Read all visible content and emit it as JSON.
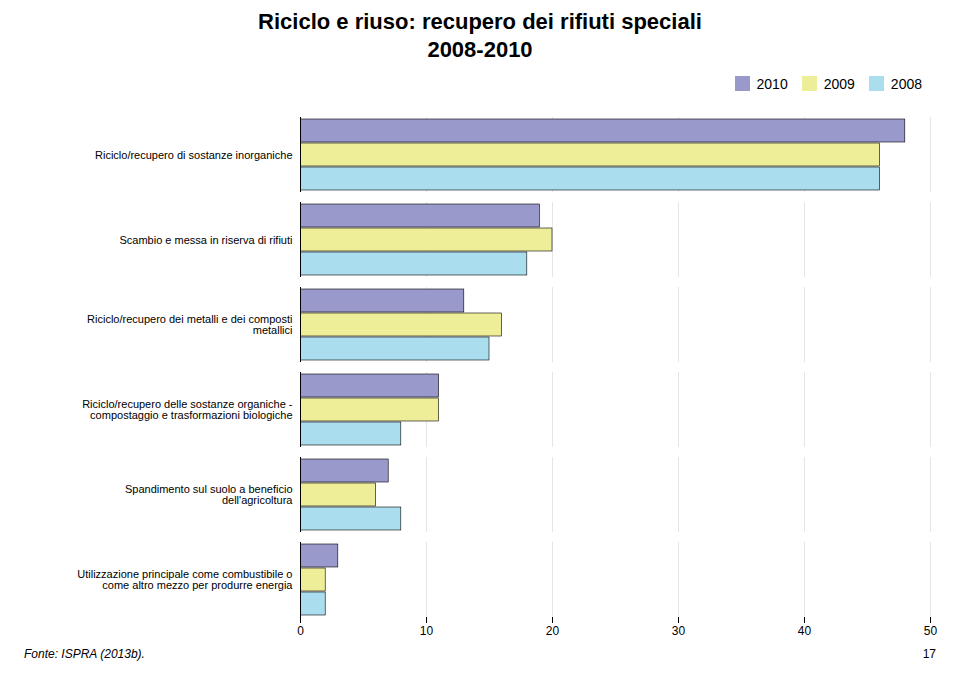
{
  "chart_data": {
    "type": "bar",
    "orientation": "horizontal",
    "title": "Riciclo e riuso: recupero dei rifiuti speciali",
    "subtitle": "2008-2010",
    "categories": [
      "Utilizzazione principale come combustibile o\ncome altro mezzo per produrre energia",
      "Spandimento sul suolo a beneficio\ndell'agricoltura",
      "Riciclo/recupero delle sostanze organiche -\ncompostaggio e trasformazioni biologiche",
      "Riciclo/recupero dei metalli e dei composti\nmetallici",
      "Scambio e messa in riserva di rifiuti",
      "Riciclo/recupero di sostanze inorganiche"
    ],
    "series": [
      {
        "name": "2010",
        "color": "#9999cc",
        "values": [
          3.0,
          7.0,
          11.0,
          13.0,
          19.0,
          48.0
        ]
      },
      {
        "name": "2009",
        "color": "#eeee99",
        "values": [
          2.0,
          6.0,
          11.0,
          16.0,
          20.0,
          46.0
        ]
      },
      {
        "name": "2008",
        "color": "#aaddee",
        "values": [
          2.0,
          8.0,
          8.0,
          15.0,
          18.0,
          46.0
        ]
      }
    ],
    "xlim": [
      0,
      50
    ],
    "xticks": [
      0,
      10,
      20,
      30,
      40,
      50
    ],
    "grid": true,
    "legend": "upper right",
    "annotations": [
      "Fonte: ISPRA (2013b).",
      "17"
    ]
  }
}
